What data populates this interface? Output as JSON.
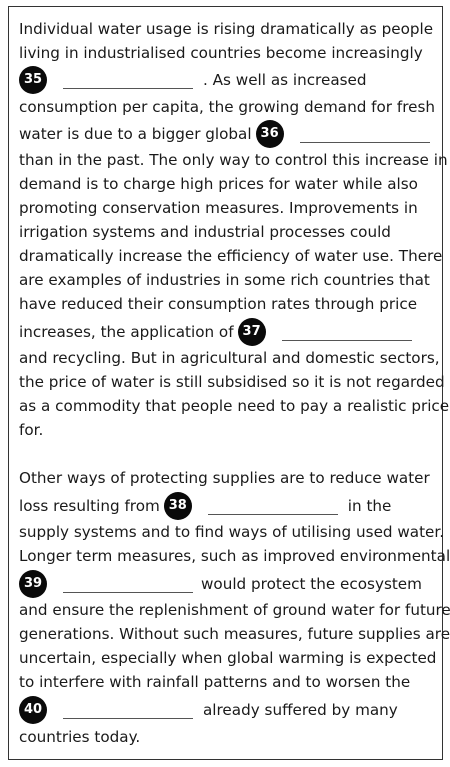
{
  "passage": {
    "p1": {
      "l1": "Individual water usage is rising dramatically as people",
      "l2": "living in industrialised countries become increasingly",
      "l3_after": ". As well as increased",
      "l4": "consumption per capita, the growing demand for fresh",
      "l5_before": "water is due to a bigger global",
      "l6": "than in the past. The only way to control this increase in",
      "l7": "demand is to charge high prices for water while also",
      "l8": "promoting conservation measures. Improvements in",
      "l9": "irrigation systems and industrial processes could",
      "l10": "dramatically increase the efficiency of water use. There",
      "l11": "are examples of industries in some rich countries that",
      "l12": "have reduced their consumption rates through price",
      "l13_before": "increases, the application of",
      "l14": "and recycling. But in agricultural and domestic sectors,",
      "l15": "the price of water is still subsidised so it is not regarded",
      "l16": "as a commodity that people need to pay a realistic price",
      "l17": "for."
    },
    "p2": {
      "l1": "Other ways of protecting supplies are to reduce water",
      "l2_before": "loss resulting from",
      "l2_after": "in the",
      "l3": "supply systems and to find ways of utilising used water.",
      "l4": "Longer term measures, such as improved environmental",
      "l5_after": "would protect the ecosystem",
      "l6": "and ensure the replenishment of ground water for future",
      "l7": "generations. Without such measures, future supplies are",
      "l8": "uncertain, especially when global warming is expected",
      "l9": "to interfere with rainfall patterns and to worsen the",
      "l10_after": "already suffered by many",
      "l11": "countries today."
    }
  },
  "questions": {
    "q35": "35",
    "q36": "36",
    "q37": "37",
    "q38": "38",
    "q39": "39",
    "q40": "40"
  }
}
